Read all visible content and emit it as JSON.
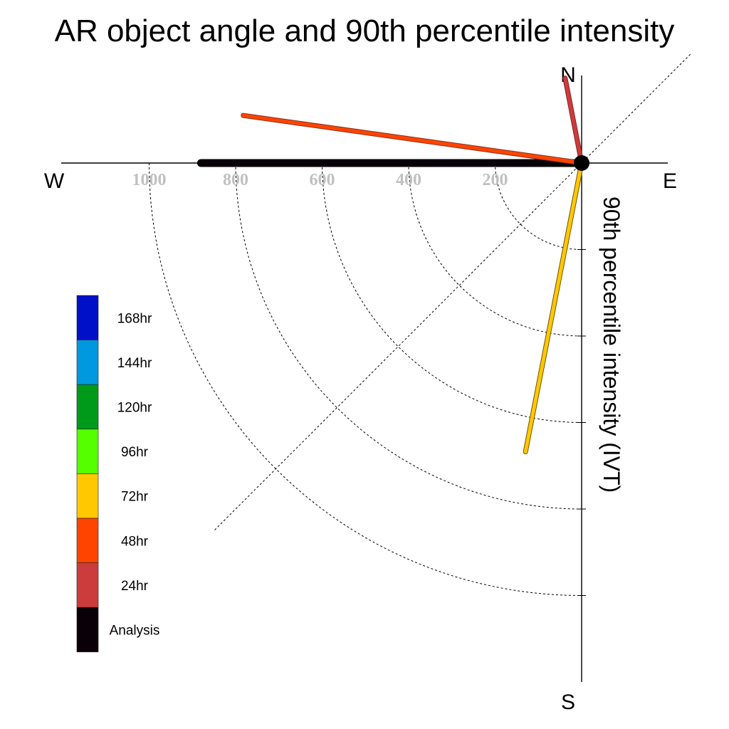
{
  "chart_data": {
    "type": "polar-vector",
    "title": "AR object angle and 90th percentile intensity",
    "ylabel": "90th percentile intensity (IVT)",
    "compass": {
      "north": "N",
      "south": "S",
      "east": "E",
      "west": "W"
    },
    "radial_ticks": [
      "200",
      "400",
      "600",
      "800",
      "1000"
    ],
    "radial_tick_values": [
      200,
      400,
      600,
      800,
      1000
    ],
    "rmax": 1200,
    "legend": [
      {
        "label": "168hr",
        "color": "#0010c8"
      },
      {
        "label": "144hr",
        "color": "#0099e0"
      },
      {
        "label": "120hr",
        "color": "#009a1a"
      },
      {
        "label": "96hr",
        "color": "#55ff00"
      },
      {
        "label": "72hr",
        "color": "#ffc800"
      },
      {
        "label": "48hr",
        "color": "#ff4400"
      },
      {
        "label": "24hr",
        "color": "#cc3c3c"
      },
      {
        "label": "Analysis",
        "color": "#0a0008"
      }
    ],
    "vectors": [
      {
        "lead": "Analysis",
        "angle_deg": 270,
        "intensity": 880,
        "color": "#0a0008",
        "outline": "#000000"
      },
      {
        "lead": "48hr",
        "angle_deg": 278,
        "intensity": 790,
        "color": "#ff4400",
        "outline": "#8a3020"
      },
      {
        "lead": "24hr",
        "angle_deg": 349,
        "intensity": 200,
        "color": "#cc3c3c",
        "outline": "#8a2020"
      },
      {
        "lead": "72hr",
        "angle_deg": 191,
        "intensity": 680,
        "color": "#ffc800",
        "outline": "#705400"
      }
    ]
  }
}
